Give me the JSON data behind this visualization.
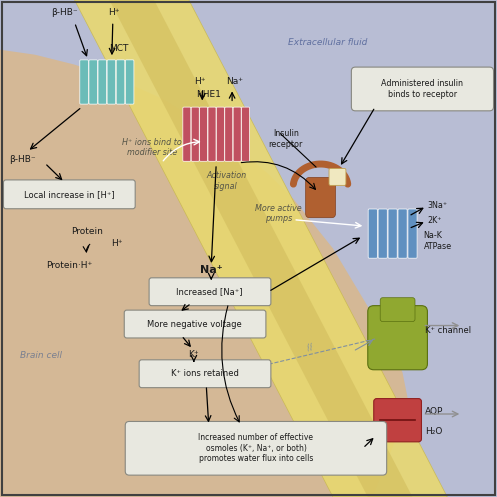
{
  "fig_size": [
    4.97,
    4.97
  ],
  "dpi": 100,
  "bg_color": "#c8c8d8",
  "cell_bg": "#d4b896",
  "extracellular_bg": "#b8bdd4",
  "labels": {
    "extracellular_label": "Extracellular fluid",
    "brain_cell_label": "Brain cell",
    "beta_hb_top": "β-HB⁻",
    "h_plus_top": "H⁺",
    "mct": "MCT",
    "nhe1": "NHE1",
    "h_plus_nhe": "H⁺",
    "na_plus_nhe": "Na⁺",
    "beta_hb_bottom": "β-HB⁻",
    "local_increase": "Local increase in [H⁺]",
    "h_ions_bind": "H⁺ ions bind to\nmodifier site",
    "protein": "Protein",
    "h_plus_protein": "H⁺",
    "protein_h": "Protein·H⁺",
    "activation_signal": "Activation\nsignal",
    "more_active_pumps": "More active\npumps",
    "na_plus_bold": "Na⁺",
    "increased_na": "Increased [Na⁺]",
    "more_negative": "More negative voltage",
    "k_plus": "K⁺",
    "k_ions_retained": "K⁺ ions retained",
    "three_na": "3Na⁺",
    "two_k": "2K⁺",
    "na_k_atpase": "Na-K\nATPase",
    "k_channel": "K⁺ channel",
    "h2o": "H₂O",
    "aqp": "AQP",
    "insulin_receptor": "Insulin\nreceptor",
    "administered_insulin": "Administered insulin\nbinds to receptor",
    "increased_osmoles": "Increased number of effective\nosmoles (K⁺, Na⁺, or both)\npromotes water flux into cells"
  },
  "colors": {
    "mct_protein": "#6bbcb8",
    "nhe1_protein": "#c05060",
    "na_k_atpase": "#6090c0",
    "k_channel": "#90a830",
    "aqp_protein": "#c04040",
    "insulin_receptor": "#b06030",
    "text_dark": "#1a1a1a",
    "arrow_color": "#111111",
    "box_fill": "#e8e8e0",
    "box_stroke": "#888880",
    "extracellular_text": "#6070a0",
    "brain_cell_text": "#7a8090"
  }
}
